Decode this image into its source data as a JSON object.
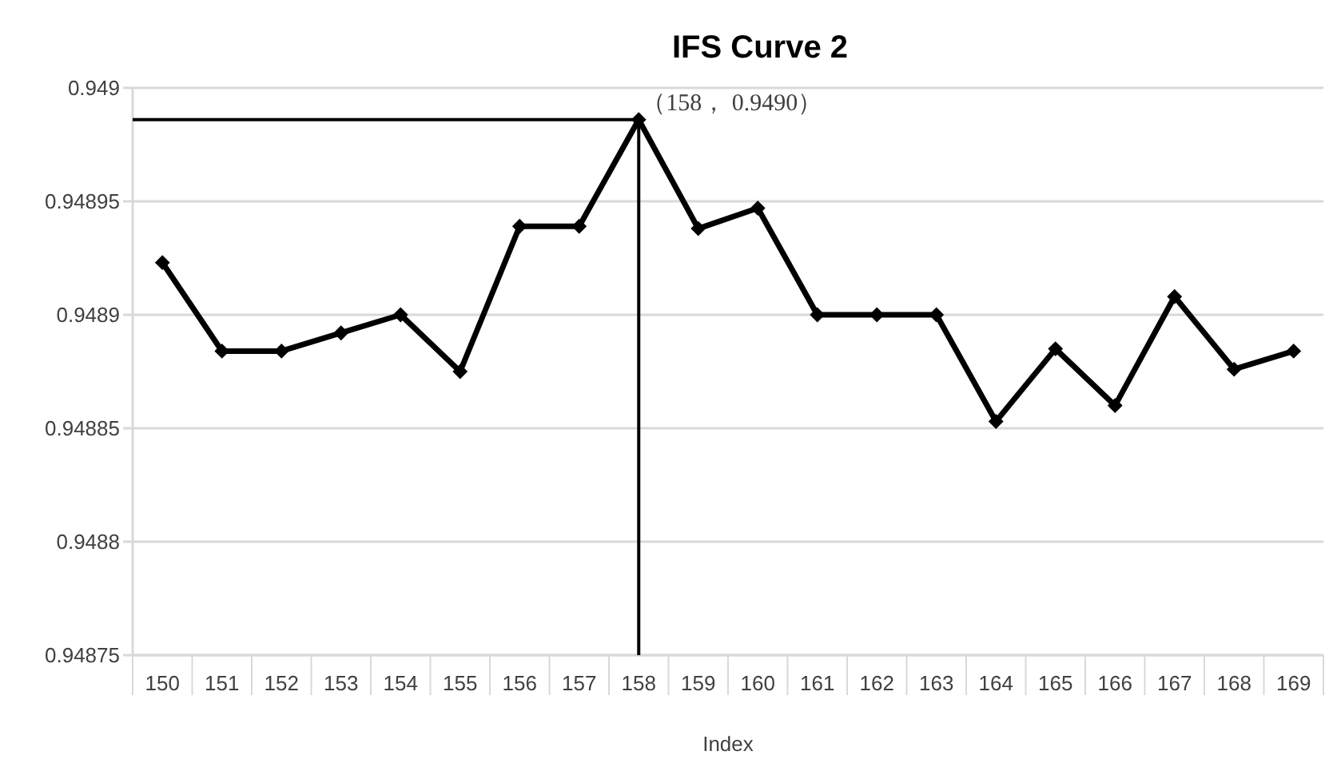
{
  "chart_data": {
    "type": "line",
    "title": "IFS Curve 2",
    "xlabel": "Index",
    "categories": [
      "150",
      "151",
      "152",
      "153",
      "154",
      "155",
      "156",
      "157",
      "158",
      "159",
      "160",
      "161",
      "162",
      "163",
      "164",
      "165",
      "166",
      "167",
      "168",
      "169"
    ],
    "series": [
      {
        "color": "#000000",
        "values": [
          0.948923,
          0.948884,
          0.948884,
          0.948892,
          0.9489,
          0.948875,
          0.948939,
          0.948939,
          0.948986,
          0.948938,
          0.948947,
          0.9489,
          0.9489,
          0.9489,
          0.948853,
          0.948885,
          0.94886,
          0.948908,
          0.948876,
          0.948884
        ]
      }
    ],
    "ylim": [
      0.94875,
      0.949
    ],
    "yticks": [
      0.94875,
      0.9488,
      0.94885,
      0.9489,
      0.94895,
      0.949
    ],
    "grid": "y",
    "marker": "diamond",
    "line_style": "solid",
    "ref_lines": [
      {
        "axis": "y",
        "value": 0.948986,
        "color": "#000000"
      },
      {
        "axis": "x",
        "value": "158",
        "color": "#000000"
      }
    ],
    "annotations": [
      {
        "text": "（158， 0.9490）",
        "x": "158",
        "y": 0.948986
      }
    ]
  }
}
